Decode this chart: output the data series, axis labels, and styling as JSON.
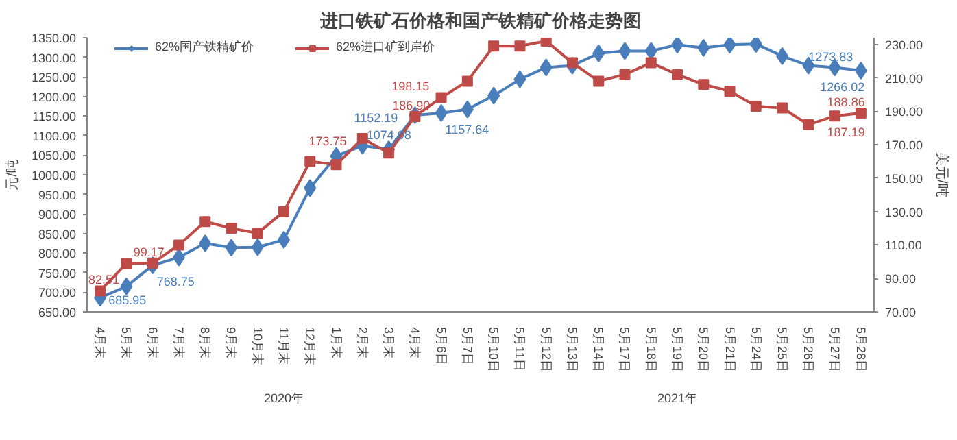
{
  "chart_data": {
    "type": "line",
    "title": "进口铁矿石价格和国产铁精矿价格走势图",
    "categories": [
      "4月末",
      "5月末",
      "6月末",
      "7月末",
      "8月末",
      "9月末",
      "10月末",
      "11月末",
      "12月末",
      "1月末",
      "2月末",
      "3月末",
      "4月末",
      "5月6日",
      "5月7日",
      "5月10日",
      "5月11日",
      "5月12日",
      "5月13日",
      "5月14日",
      "5月17日",
      "5月18日",
      "5月19日",
      "5月20日",
      "5月21日",
      "5月24日",
      "5月25日",
      "5月26日",
      "5月27日",
      "5月28日"
    ],
    "ylabel": "元/吨",
    "y2label": "美元/吨",
    "ylim": [
      650,
      1350
    ],
    "yticks": [
      {
        "value": 650,
        "label": "650.00"
      },
      {
        "value": 700,
        "label": "700.00"
      },
      {
        "value": 750,
        "label": "750.00"
      },
      {
        "value": 800,
        "label": "800.00"
      },
      {
        "value": 850,
        "label": "850.00"
      },
      {
        "value": 900,
        "label": "900.00"
      },
      {
        "value": 950,
        "label": "950.00"
      },
      {
        "value": 1000,
        "label": "1000.00"
      },
      {
        "value": 1050,
        "label": "1050.00"
      },
      {
        "value": 1100,
        "label": "1100.00"
      },
      {
        "value": 1150,
        "label": "1150.00"
      },
      {
        "value": 1200,
        "label": "1200.00"
      },
      {
        "value": 1250,
        "label": "1250.00"
      },
      {
        "value": 1300,
        "label": "1300.00"
      },
      {
        "value": 1350,
        "label": "1350.00"
      }
    ],
    "y2lim": [
      70,
      234
    ],
    "y2ticks": [
      {
        "value": 70,
        "label": "70.00"
      },
      {
        "value": 90,
        "label": "90.00"
      },
      {
        "value": 110,
        "label": "110.00"
      },
      {
        "value": 130,
        "label": "130.00"
      },
      {
        "value": 150,
        "label": "150.00"
      },
      {
        "value": 170,
        "label": "170.00"
      },
      {
        "value": 190,
        "label": "190.00"
      },
      {
        "value": 210,
        "label": "210.00"
      },
      {
        "value": 230,
        "label": "230.00"
      }
    ],
    "series": [
      {
        "name": "62%国产铁精矿价",
        "color": "#4a7ebb",
        "marker": "diamond",
        "values": [
          685.95,
          715,
          768.75,
          789,
          825,
          814,
          815,
          834,
          966,
          1048,
          1074.08,
          1065,
          1152.19,
          1157.64,
          1167,
          1202,
          1244,
          1274,
          1279,
          1310,
          1316,
          1316,
          1332,
          1324,
          1332,
          1334,
          1303,
          1279,
          1273.83,
          1266.02
        ],
        "value_labels": [
          "685.95",
          null,
          "768.75",
          null,
          null,
          null,
          null,
          null,
          null,
          null,
          "1074.08",
          null,
          "1152.19",
          "1157.64",
          null,
          null,
          null,
          null,
          null,
          null,
          null,
          null,
          null,
          null,
          null,
          null,
          null,
          null,
          "1273.83",
          "1266.02"
        ]
      },
      {
        "name": "62%进口矿到岸价",
        "color": "#be4b48",
        "marker": "square",
        "axis": "y2",
        "values": [
          82.51,
          99,
          99.17,
          110,
          124,
          120,
          117,
          130,
          160,
          158,
          173.75,
          165,
          186.9,
          198.15,
          208,
          229,
          229,
          232,
          219,
          208,
          212,
          219,
          212,
          206,
          202,
          193,
          192,
          182,
          187.19,
          188.86
        ],
        "value_labels": [
          "82.51",
          null,
          "99.17",
          null,
          null,
          null,
          null,
          null,
          null,
          null,
          "173.75",
          null,
          "186.90",
          "198.15",
          null,
          null,
          null,
          null,
          null,
          null,
          null,
          null,
          null,
          null,
          null,
          null,
          null,
          null,
          "187.19",
          "188.86"
        ]
      }
    ],
    "annotations": [
      "2020年",
      "2021年"
    ],
    "legend": "top",
    "grid": false
  }
}
